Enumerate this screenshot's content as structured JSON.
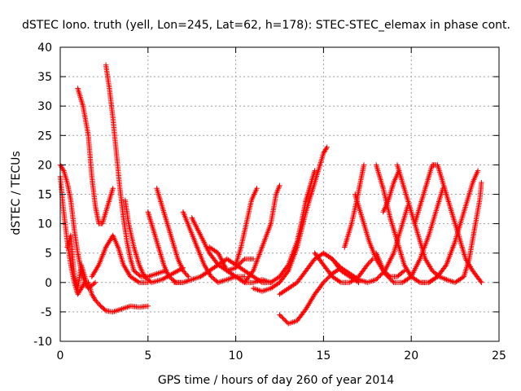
{
  "chart_data": {
    "type": "scatter",
    "title": "dSTEC Iono. truth (yell, Lon=245, Lat=62, h=178): STEC-STEC_elemax in phase cont.",
    "xlabel": "GPS time / hours of day 260 of year 2014",
    "ylabel": "dSTEC  / TECUs",
    "xlim": [
      0,
      25
    ],
    "ylim": [
      -10,
      40
    ],
    "x_ticks": [
      0,
      5,
      10,
      15,
      20,
      25
    ],
    "x_tick_labels": [
      "0",
      "5",
      "10",
      "15",
      "20",
      "25"
    ],
    "y_ticks": [
      -10,
      -5,
      0,
      5,
      10,
      15,
      20,
      25,
      30,
      35,
      40
    ],
    "y_tick_labels": [
      "-10",
      "-5",
      "0",
      "5",
      "10",
      "15",
      "20",
      "25",
      "30",
      "35",
      "40"
    ],
    "grid": true,
    "marker": "+",
    "color": "#ff0000",
    "series": [
      {
        "points": [
          [
            0.0,
            18
          ],
          [
            0.2,
            12
          ],
          [
            0.4,
            7
          ],
          [
            0.6,
            3
          ],
          [
            0.8,
            0
          ],
          [
            1.0,
            -2
          ],
          [
            1.2,
            -1
          ],
          [
            1.4,
            0
          ]
        ]
      },
      {
        "points": [
          [
            0.0,
            20
          ],
          [
            0.2,
            19
          ],
          [
            0.4,
            17
          ],
          [
            0.6,
            14
          ],
          [
            0.8,
            9
          ],
          [
            1.0,
            5
          ],
          [
            1.2,
            2
          ],
          [
            1.4,
            0
          ],
          [
            1.6,
            -1
          ]
        ]
      },
      {
        "points": [
          [
            0.4,
            6
          ],
          [
            0.6,
            8
          ],
          [
            0.8,
            1
          ],
          [
            1.0,
            -1
          ],
          [
            1.2,
            3
          ],
          [
            1.4,
            1
          ],
          [
            1.6,
            -1
          ],
          [
            2.0,
            0
          ]
        ]
      },
      {
        "points": [
          [
            1.0,
            33
          ],
          [
            1.3,
            30
          ],
          [
            1.6,
            25
          ],
          [
            1.8,
            18
          ],
          [
            2.0,
            13
          ],
          [
            2.2,
            10
          ],
          [
            2.4,
            10
          ],
          [
            2.6,
            12
          ],
          [
            2.8,
            14
          ],
          [
            3.0,
            16
          ]
        ]
      },
      {
        "points": [
          [
            1.6,
            0
          ],
          [
            1.8,
            -2
          ],
          [
            2.0,
            -3
          ],
          [
            2.3,
            -4
          ],
          [
            2.6,
            -4.8
          ],
          [
            3.0,
            -5
          ],
          [
            3.5,
            -4.5
          ],
          [
            4.0,
            -4
          ],
          [
            4.5,
            -4.2
          ],
          [
            5.0,
            -4
          ]
        ]
      },
      {
        "points": [
          [
            2.6,
            37
          ],
          [
            2.8,
            33
          ],
          [
            3.0,
            28
          ],
          [
            3.2,
            22
          ],
          [
            3.4,
            16
          ],
          [
            3.6,
            11
          ],
          [
            3.8,
            7
          ],
          [
            4.0,
            4
          ],
          [
            4.2,
            2
          ],
          [
            4.6,
            1
          ],
          [
            5.0,
            1
          ],
          [
            5.5,
            1.5
          ],
          [
            6.0,
            2
          ]
        ]
      },
      {
        "points": [
          [
            1.8,
            1
          ],
          [
            2.2,
            3
          ],
          [
            2.6,
            6
          ],
          [
            3.0,
            8
          ],
          [
            3.3,
            6
          ],
          [
            3.6,
            3
          ],
          [
            4.0,
            1
          ],
          [
            4.5,
            0
          ],
          [
            5.0,
            0
          ]
        ]
      },
      {
        "points": [
          [
            3.7,
            14
          ],
          [
            3.9,
            10
          ],
          [
            4.2,
            6
          ],
          [
            4.5,
            3
          ],
          [
            4.8,
            1
          ],
          [
            5.2,
            0
          ],
          [
            5.8,
            0.5
          ],
          [
            6.4,
            1.5
          ],
          [
            7.0,
            2.5
          ]
        ]
      },
      {
        "points": [
          [
            5.0,
            12
          ],
          [
            5.3,
            9
          ],
          [
            5.6,
            6
          ],
          [
            5.9,
            3
          ],
          [
            6.2,
            1
          ],
          [
            6.6,
            0
          ],
          [
            7.0,
            0
          ]
        ]
      },
      {
        "points": [
          [
            5.5,
            16
          ],
          [
            5.8,
            13
          ],
          [
            6.1,
            10
          ],
          [
            6.4,
            7
          ],
          [
            6.7,
            4
          ],
          [
            7.0,
            2
          ],
          [
            7.3,
            1
          ]
        ]
      },
      {
        "points": [
          [
            7.0,
            12
          ],
          [
            7.4,
            9
          ],
          [
            7.8,
            6
          ],
          [
            8.2,
            3
          ],
          [
            8.6,
            1
          ],
          [
            9.0,
            0
          ],
          [
            9.5,
            0.5
          ],
          [
            10.0,
            1
          ],
          [
            10.5,
            1
          ]
        ]
      },
      {
        "points": [
          [
            6.5,
            0
          ],
          [
            7.0,
            0
          ],
          [
            7.5,
            0.5
          ],
          [
            8.0,
            1
          ],
          [
            8.5,
            2
          ],
          [
            9.0,
            3
          ],
          [
            9.5,
            4
          ],
          [
            10.0,
            3
          ],
          [
            10.5,
            2
          ],
          [
            11.0,
            1
          ],
          [
            11.5,
            0
          ],
          [
            12.0,
            0
          ]
        ]
      },
      {
        "points": [
          [
            7.5,
            11
          ],
          [
            8.0,
            8
          ],
          [
            8.5,
            5
          ],
          [
            9.0,
            3
          ],
          [
            9.5,
            2
          ],
          [
            10.0,
            2.5
          ],
          [
            10.5,
            4
          ],
          [
            11.0,
            4
          ]
        ]
      },
      {
        "points": [
          [
            8.5,
            6
          ],
          [
            9.0,
            5
          ],
          [
            9.5,
            2
          ],
          [
            10.0,
            1
          ],
          [
            10.5,
            0
          ],
          [
            11.0,
            0
          ],
          [
            11.5,
            0.5
          ],
          [
            12.0,
            0
          ]
        ]
      },
      {
        "points": [
          [
            10.0,
            3
          ],
          [
            10.3,
            6
          ],
          [
            10.6,
            10
          ],
          [
            10.9,
            14
          ],
          [
            11.2,
            16
          ]
        ]
      },
      {
        "points": [
          [
            10.5,
            0
          ],
          [
            11.0,
            2
          ],
          [
            11.5,
            6
          ],
          [
            12.0,
            10
          ],
          [
            12.3,
            15
          ],
          [
            12.5,
            16.5
          ]
        ]
      },
      {
        "points": [
          [
            11.0,
            -1
          ],
          [
            11.5,
            -1.5
          ],
          [
            12.0,
            -1
          ],
          [
            12.5,
            0
          ],
          [
            13.0,
            2
          ],
          [
            13.5,
            6
          ],
          [
            14.0,
            12
          ],
          [
            14.5,
            17
          ],
          [
            15.0,
            22
          ],
          [
            15.2,
            23
          ]
        ]
      },
      {
        "points": [
          [
            12.0,
            0
          ],
          [
            12.5,
            1
          ],
          [
            13.0,
            3
          ],
          [
            13.5,
            7
          ],
          [
            13.8,
            11
          ],
          [
            14.0,
            14
          ],
          [
            14.3,
            17
          ],
          [
            14.5,
            19
          ]
        ]
      },
      {
        "points": [
          [
            12.5,
            -2
          ],
          [
            13.0,
            -1
          ],
          [
            13.5,
            0
          ],
          [
            14.0,
            2
          ],
          [
            14.5,
            4
          ],
          [
            15.0,
            5
          ],
          [
            15.5,
            4
          ],
          [
            16.0,
            2
          ],
          [
            16.5,
            1
          ],
          [
            17.0,
            0
          ]
        ]
      },
      {
        "points": [
          [
            12.5,
            -5.5
          ],
          [
            13.0,
            -7
          ],
          [
            13.5,
            -6.5
          ],
          [
            14.0,
            -4.5
          ],
          [
            14.5,
            -2
          ],
          [
            15.0,
            0
          ],
          [
            15.5,
            1.5
          ],
          [
            16.0,
            2.5
          ]
        ]
      },
      {
        "points": [
          [
            14.5,
            5
          ],
          [
            15.0,
            3
          ],
          [
            15.5,
            1
          ],
          [
            16.0,
            0
          ],
          [
            16.5,
            0
          ],
          [
            17.0,
            1
          ],
          [
            17.5,
            3
          ],
          [
            17.8,
            4
          ]
        ]
      },
      {
        "points": [
          [
            16.2,
            6
          ],
          [
            16.6,
            10
          ],
          [
            16.9,
            14
          ],
          [
            17.1,
            17
          ],
          [
            17.3,
            20
          ]
        ]
      },
      {
        "points": [
          [
            15.0,
            5
          ],
          [
            15.5,
            4
          ],
          [
            16.0,
            2.5
          ],
          [
            16.5,
            1.5
          ],
          [
            17.0,
            0.5
          ],
          [
            17.5,
            0
          ],
          [
            18.0,
            0.5
          ],
          [
            18.5,
            2
          ],
          [
            19.0,
            5
          ],
          [
            19.5,
            10
          ],
          [
            19.8,
            13
          ]
        ]
      },
      {
        "points": [
          [
            16.8,
            15
          ],
          [
            17.2,
            11
          ],
          [
            17.6,
            7
          ],
          [
            18.0,
            4
          ],
          [
            18.4,
            2
          ],
          [
            18.8,
            1
          ],
          [
            19.2,
            1
          ],
          [
            19.6,
            2
          ]
        ]
      },
      {
        "points": [
          [
            18.0,
            20
          ],
          [
            18.4,
            16
          ],
          [
            18.8,
            11
          ],
          [
            19.2,
            7
          ],
          [
            19.6,
            3
          ],
          [
            20.0,
            1
          ],
          [
            20.5,
            0
          ],
          [
            21.0,
            0
          ],
          [
            21.5,
            1
          ]
        ]
      },
      {
        "points": [
          [
            19.2,
            20
          ],
          [
            19.6,
            16
          ],
          [
            20.0,
            12
          ],
          [
            20.4,
            8
          ],
          [
            20.8,
            4
          ],
          [
            21.2,
            2
          ],
          [
            21.6,
            1
          ],
          [
            22.0,
            0.5
          ]
        ]
      },
      {
        "points": [
          [
            18.4,
            12
          ],
          [
            18.7,
            14
          ],
          [
            19.0,
            17
          ],
          [
            19.3,
            19
          ]
        ]
      },
      {
        "points": [
          [
            18.0,
            5
          ],
          [
            18.5,
            1.5
          ],
          [
            19.0,
            0
          ],
          [
            19.5,
            0
          ],
          [
            20.0,
            1
          ],
          [
            20.5,
            4
          ],
          [
            21.0,
            8
          ],
          [
            21.5,
            13
          ],
          [
            21.8,
            16
          ]
        ]
      },
      {
        "points": [
          [
            20.2,
            10
          ],
          [
            20.6,
            14
          ],
          [
            20.9,
            17
          ],
          [
            21.2,
            20
          ],
          [
            21.4,
            20
          ]
        ]
      },
      {
        "points": [
          [
            20.5,
            0
          ],
          [
            21.0,
            0
          ],
          [
            21.5,
            1
          ],
          [
            22.0,
            3
          ],
          [
            22.5,
            7
          ],
          [
            23.0,
            12
          ],
          [
            23.5,
            17
          ],
          [
            23.8,
            19
          ]
        ]
      },
      {
        "points": [
          [
            21.5,
            20
          ],
          [
            21.9,
            16
          ],
          [
            22.3,
            12
          ],
          [
            22.7,
            8
          ],
          [
            23.1,
            4
          ],
          [
            23.5,
            2
          ],
          [
            24.0,
            0
          ]
        ]
      },
      {
        "points": [
          [
            22.0,
            0.5
          ],
          [
            22.5,
            0
          ],
          [
            23.0,
            1
          ],
          [
            23.3,
            4
          ],
          [
            23.6,
            9
          ],
          [
            23.9,
            14
          ],
          [
            24.0,
            17
          ]
        ]
      }
    ]
  }
}
